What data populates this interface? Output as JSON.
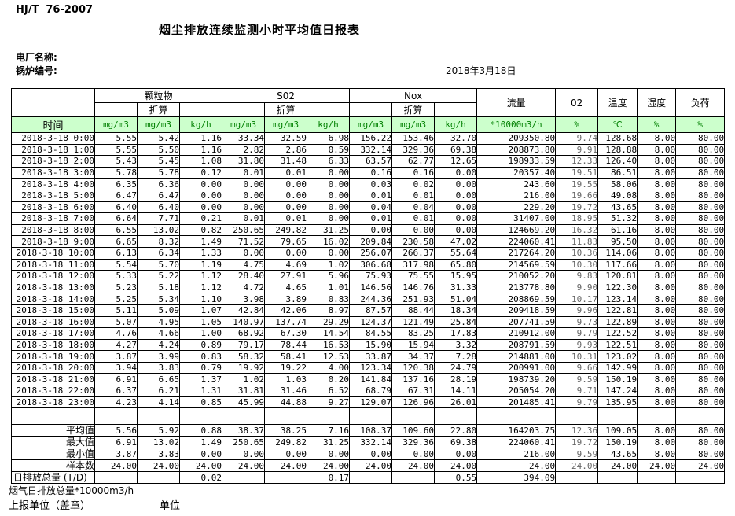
{
  "page": {
    "standard_code": "HJ/T  76-2007",
    "title": "烟尘排放连续监测小时平均值日报表",
    "plant_name_label": "电厂名称:",
    "boiler_no_label": "锅炉编号:",
    "report_date": "2018年3月18日"
  },
  "table": {
    "time_header": "时间",
    "converted_label": "折算",
    "group_headers": {
      "pm": "颗粒物",
      "so2": "S02",
      "nox": "Nox",
      "flow": "流量",
      "o2": "02",
      "temperature": "温度",
      "humidity": "湿度",
      "load": "负荷"
    },
    "unit_row": [
      "mg/m3",
      "mg/m3",
      "kg/h",
      "mg/m3",
      "mg/m3",
      "kg/h",
      "mg/m3",
      "mg/m3",
      "kg/h",
      "*10000m3/h",
      "%",
      "℃",
      "%",
      "%"
    ],
    "rows": [
      {
        "time": "2018-3-18 0:00",
        "values": [
          "5.55",
          "5.42",
          "1.16",
          "33.34",
          "32.59",
          "6.98",
          "156.22",
          "153.46",
          "32.70",
          "209350.80",
          "9.74",
          "128.68",
          "8.00",
          "80.00"
        ]
      },
      {
        "time": "2018-3-18 1:00",
        "values": [
          "5.55",
          "5.50",
          "1.16",
          "2.82",
          "2.86",
          "0.59",
          "332.14",
          "329.36",
          "69.38",
          "208873.80",
          "9.91",
          "128.88",
          "8.00",
          "80.00"
        ]
      },
      {
        "time": "2018-3-18 2:00",
        "values": [
          "5.43",
          "5.45",
          "1.08",
          "31.80",
          "31.48",
          "6.33",
          "63.57",
          "62.77",
          "12.65",
          "198933.59",
          "12.33",
          "126.40",
          "8.00",
          "80.00"
        ]
      },
      {
        "time": "2018-3-18 3:00",
        "values": [
          "5.78",
          "5.78",
          "0.12",
          "0.01",
          "0.01",
          "0.00",
          "0.16",
          "0.16",
          "0.00",
          "20357.40",
          "19.51",
          "86.51",
          "8.00",
          "80.00"
        ]
      },
      {
        "time": "2018-3-18 4:00",
        "values": [
          "6.35",
          "6.36",
          "0.00",
          "0.00",
          "0.00",
          "0.00",
          "0.03",
          "0.02",
          "0.00",
          "243.60",
          "19.55",
          "58.06",
          "8.00",
          "80.00"
        ]
      },
      {
        "time": "2018-3-18 5:00",
        "values": [
          "6.47",
          "6.47",
          "0.00",
          "0.00",
          "0.00",
          "0.00",
          "0.01",
          "0.01",
          "0.00",
          "216.00",
          "19.66",
          "49.08",
          "8.00",
          "80.00"
        ]
      },
      {
        "time": "2018-3-18 6:00",
        "values": [
          "6.40",
          "6.40",
          "0.00",
          "0.00",
          "0.00",
          "0.00",
          "0.04",
          "0.04",
          "0.00",
          "229.20",
          "19.72",
          "43.65",
          "8.00",
          "80.00"
        ]
      },
      {
        "time": "2018-3-18 7:00",
        "values": [
          "6.64",
          "7.71",
          "0.21",
          "0.01",
          "0.01",
          "0.00",
          "0.01",
          "0.01",
          "0.00",
          "31407.00",
          "18.95",
          "51.32",
          "8.00",
          "80.00"
        ]
      },
      {
        "time": "2018-3-18 8:00",
        "values": [
          "6.55",
          "13.02",
          "0.82",
          "250.65",
          "249.82",
          "31.25",
          "0.00",
          "0.00",
          "0.00",
          "124669.20",
          "16.32",
          "61.16",
          "8.00",
          "80.00"
        ]
      },
      {
        "time": "2018-3-18 9:00",
        "values": [
          "6.65",
          "8.32",
          "1.49",
          "71.52",
          "79.65",
          "16.02",
          "209.84",
          "230.58",
          "47.02",
          "224060.41",
          "11.83",
          "95.50",
          "8.00",
          "80.00"
        ]
      },
      {
        "time": "2018-3-18 10:00",
        "values": [
          "6.13",
          "6.34",
          "1.33",
          "0.00",
          "0.00",
          "0.00",
          "256.07",
          "266.37",
          "55.64",
          "217264.20",
          "10.36",
          "114.06",
          "8.00",
          "80.00"
        ]
      },
      {
        "time": "2018-3-18 11:00",
        "values": [
          "5.54",
          "5.70",
          "1.19",
          "4.75",
          "4.69",
          "1.02",
          "306.68",
          "317.98",
          "65.80",
          "214569.59",
          "10.30",
          "117.66",
          "8.00",
          "80.00"
        ]
      },
      {
        "time": "2018-3-18 12:00",
        "values": [
          "5.33",
          "5.22",
          "1.12",
          "28.40",
          "27.91",
          "5.96",
          "75.93",
          "75.55",
          "15.95",
          "210052.20",
          "9.83",
          "120.81",
          "8.00",
          "80.00"
        ]
      },
      {
        "time": "2018-3-18 13:00",
        "values": [
          "5.23",
          "5.18",
          "1.12",
          "4.72",
          "4.65",
          "1.01",
          "146.56",
          "146.76",
          "31.33",
          "213778.80",
          "9.90",
          "122.30",
          "8.00",
          "80.00"
        ]
      },
      {
        "time": "2018-3-18 14:00",
        "values": [
          "5.25",
          "5.34",
          "1.10",
          "3.98",
          "3.89",
          "0.83",
          "244.36",
          "251.93",
          "51.04",
          "208869.59",
          "10.17",
          "123.14",
          "8.00",
          "80.00"
        ]
      },
      {
        "time": "2018-3-18 15:00",
        "values": [
          "5.11",
          "5.09",
          "1.07",
          "42.84",
          "42.06",
          "8.97",
          "87.57",
          "88.44",
          "18.34",
          "209418.59",
          "9.96",
          "122.81",
          "8.00",
          "80.00"
        ]
      },
      {
        "time": "2018-3-18 16:00",
        "values": [
          "5.07",
          "4.95",
          "1.05",
          "140.97",
          "137.74",
          "29.29",
          "124.37",
          "121.49",
          "25.84",
          "207741.59",
          "9.73",
          "122.89",
          "8.00",
          "80.00"
        ]
      },
      {
        "time": "2018-3-18 17:00",
        "values": [
          "4.76",
          "4.66",
          "1.00",
          "68.92",
          "67.30",
          "14.54",
          "84.55",
          "83.25",
          "17.83",
          "210912.00",
          "9.79",
          "122.52",
          "8.00",
          "80.00"
        ]
      },
      {
        "time": "2018-3-18 18:00",
        "values": [
          "4.27",
          "4.24",
          "0.89",
          "79.17",
          "78.44",
          "16.53",
          "15.90",
          "15.94",
          "3.32",
          "208791.59",
          "9.93",
          "122.51",
          "8.00",
          "80.00"
        ]
      },
      {
        "time": "2018-3-18 19:00",
        "values": [
          "3.87",
          "3.99",
          "0.83",
          "58.32",
          "58.41",
          "12.53",
          "33.87",
          "34.37",
          "7.28",
          "214881.00",
          "10.31",
          "123.02",
          "8.00",
          "80.00"
        ]
      },
      {
        "time": "2018-3-18 20:00",
        "values": [
          "3.94",
          "3.83",
          "0.79",
          "19.92",
          "19.22",
          "4.00",
          "123.34",
          "120.38",
          "24.79",
          "200991.00",
          "9.66",
          "142.99",
          "8.00",
          "80.00"
        ]
      },
      {
        "time": "2018-3-18 21:00",
        "values": [
          "6.91",
          "6.65",
          "1.37",
          "1.02",
          "1.03",
          "0.20",
          "141.84",
          "137.16",
          "28.19",
          "198739.20",
          "9.59",
          "150.19",
          "8.00",
          "80.00"
        ]
      },
      {
        "time": "2018-3-18 22:00",
        "values": [
          "6.37",
          "6.21",
          "1.31",
          "31.81",
          "31.46",
          "6.52",
          "68.79",
          "67.31",
          "14.11",
          "205054.20",
          "9.71",
          "147.24",
          "8.00",
          "80.00"
        ]
      },
      {
        "time": "2018-3-18 23:00",
        "values": [
          "4.23",
          "4.14",
          "0.85",
          "45.99",
          "44.88",
          "9.27",
          "129.07",
          "126.96",
          "26.01",
          "201485.41",
          "9.79",
          "135.95",
          "8.00",
          "80.00"
        ]
      }
    ],
    "summary_rows": [
      {
        "label": "平均值",
        "values": [
          "5.56",
          "5.92",
          "0.88",
          "38.37",
          "38.25",
          "7.16",
          "108.37",
          "109.60",
          "22.80",
          "164203.75",
          "12.36",
          "109.05",
          "8.00",
          "80.00"
        ]
      },
      {
        "label": "最大值",
        "values": [
          "6.91",
          "13.02",
          "1.49",
          "250.65",
          "249.82",
          "31.25",
          "332.14",
          "329.36",
          "69.38",
          "224060.41",
          "19.72",
          "150.19",
          "8.00",
          "80.00"
        ]
      },
      {
        "label": "最小值",
        "values": [
          "3.87",
          "3.83",
          "0.00",
          "0.00",
          "0.00",
          "0.00",
          "0.00",
          "0.00",
          "0.00",
          "216.00",
          "9.59",
          "43.65",
          "8.00",
          "80.00"
        ]
      },
      {
        "label": "样本数",
        "values": [
          "24.00",
          "24.00",
          "24.00",
          "24.00",
          "24.00",
          "24.00",
          "24.00",
          "24.00",
          "24.00",
          "24.00",
          "24.00",
          "24.00",
          "24.00",
          "24.00"
        ]
      },
      {
        "label": "日排放总量 (T/D)",
        "align": "left",
        "values": [
          "",
          "",
          "0.02",
          "",
          "",
          "0.17",
          "",
          "",
          "0.55",
          "394.09",
          "",
          "",
          "",
          ""
        ]
      }
    ]
  },
  "footer": {
    "flue_gas_note": "烟气日排放总量*10000m3/h",
    "reporting_unit_label": "上报单位（盖章）",
    "unit_label": "单位"
  },
  "colors": {
    "header_bg": "#ccffcc",
    "unit_text": "#008000",
    "o2_text": "#666666"
  }
}
